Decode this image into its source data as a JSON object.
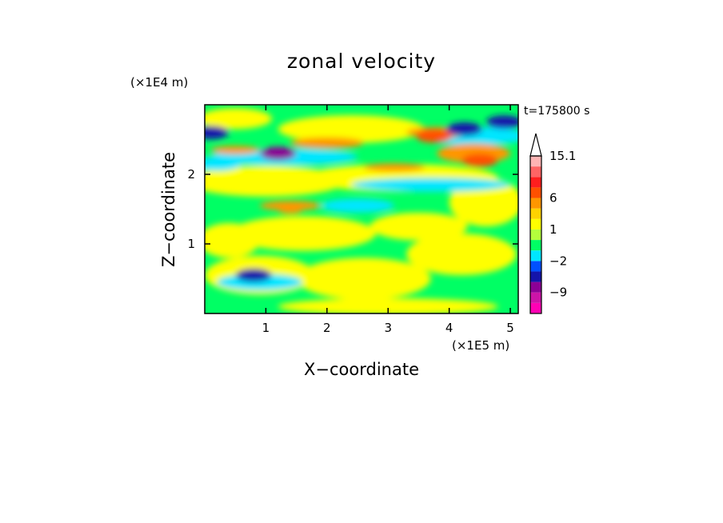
{
  "chart_data": {
    "type": "heatmap",
    "title": "zonal velocity",
    "xlabel": "X−coordinate",
    "ylabel": "Z−coordinate",
    "x_unit": "(×1E5 m)",
    "y_unit": "(×1E4 m)",
    "time_label": "t=175800 s",
    "xlim": [
      0,
      5.13
    ],
    "ylim": [
      0,
      3.0
    ],
    "x_ticks": [
      1,
      2,
      3,
      4,
      5
    ],
    "y_ticks": [
      1,
      2
    ],
    "colorbar": {
      "levels": [
        -15,
        -12,
        -9,
        -6,
        -3,
        -2,
        -1,
        0,
        1,
        2,
        3,
        6,
        9,
        12,
        15.1
      ],
      "colors": [
        "#ff00b4",
        "#cc14a8",
        "#8c0096",
        "#1414aa",
        "#0050ff",
        "#00e6ff",
        "#00ff64",
        "#b4ff3c",
        "#ffff00",
        "#ffd200",
        "#ff9600",
        "#ff5000",
        "#ff1e1e",
        "#ff6464",
        "#ffb4b4"
      ],
      "over_color": "#ffffff",
      "labels": [
        "15.1",
        "6",
        "1",
        "−2",
        "−9"
      ]
    },
    "features": [
      {
        "x": 1.2,
        "z": 2.3,
        "value": -9
      },
      {
        "x": 0.1,
        "z": 2.6,
        "value": -6
      },
      {
        "x": 4.25,
        "z": 2.65,
        "value": -6
      },
      {
        "x": 4.9,
        "z": 2.75,
        "value": -6
      },
      {
        "x": 4.5,
        "z": 2.2,
        "value": 6
      },
      {
        "x": 3.75,
        "z": 2.55,
        "value": 6
      },
      {
        "x": 1.4,
        "z": 1.5,
        "value": 3
      },
      {
        "x": 0.8,
        "z": 0.55,
        "value": -6
      }
    ]
  }
}
